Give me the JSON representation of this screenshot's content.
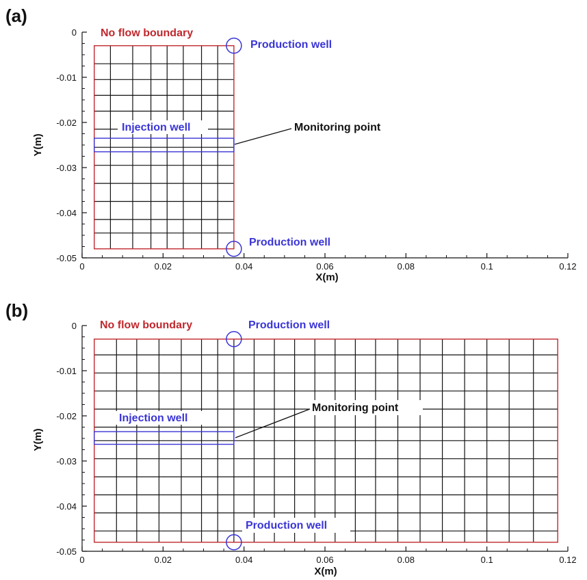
{
  "colors": {
    "boundary": "#c0282d",
    "well": "#3a35d6",
    "grid": "#111111",
    "axis": "#111111"
  },
  "panels": [
    {
      "id": "a",
      "label": "(a)",
      "x_axis": {
        "title": "X(m)",
        "ticks": [
          0,
          0.02,
          0.04,
          0.06,
          0.08,
          0.1,
          0.12
        ],
        "tick_labels": [
          "0",
          "0.02",
          "0.04",
          "0.06",
          "0.08",
          "0.1",
          "0.12"
        ]
      },
      "y_axis": {
        "title": "Y(m)",
        "ticks": [
          0,
          -0.01,
          -0.02,
          -0.03,
          -0.04,
          -0.05
        ],
        "tick_labels": [
          "0",
          "-0.01",
          "-0.02",
          "-0.03",
          "-0.04",
          "-0.05"
        ]
      },
      "domain": {
        "x": [
          0.003,
          0.0375
        ],
        "y": [
          -0.048,
          -0.003
        ]
      },
      "grid_x": [
        0.003,
        0.007,
        0.0125,
        0.017,
        0.021,
        0.025,
        0.0295,
        0.0335,
        0.0375
      ],
      "grid_y": [
        -0.003,
        -0.007,
        -0.0105,
        -0.014,
        -0.0175,
        -0.0215,
        -0.0255,
        -0.0295,
        -0.0335,
        -0.0375,
        -0.0415,
        -0.0445,
        -0.048
      ],
      "injection_well": {
        "x": [
          0.003,
          0.0375
        ],
        "y": [
          -0.0265,
          -0.0235
        ]
      },
      "production_wells": [
        {
          "x": 0.0375,
          "y": -0.003
        },
        {
          "x": 0.0375,
          "y": -0.048
        }
      ],
      "monitoring_point": {
        "x": 0.0375,
        "y": -0.0255
      },
      "labels": {
        "boundary": "No flow boundary",
        "injection": "Injection well",
        "monitoring": "Monitoring point",
        "production_top": "Production well",
        "production_bottom": "Production well"
      }
    },
    {
      "id": "b",
      "label": "(b)",
      "x_axis": {
        "title": "X(m)",
        "ticks": [
          0,
          0.02,
          0.04,
          0.06,
          0.08,
          0.1,
          0.12
        ],
        "tick_labels": [
          "0",
          "0.02",
          "0.04",
          "0.06",
          "0.08",
          "0.1",
          "0.12"
        ]
      },
      "y_axis": {
        "title": "Y(m)",
        "ticks": [
          0,
          -0.01,
          -0.02,
          -0.03,
          -0.04,
          -0.05
        ],
        "tick_labels": [
          "0",
          "-0.01",
          "-0.02",
          "-0.03",
          "-0.04",
          "-0.05"
        ]
      },
      "domain": {
        "x": [
          0.003,
          0.1175
        ],
        "y": [
          -0.048,
          -0.003
        ]
      },
      "grid_x": [
        0.003,
        0.0085,
        0.0135,
        0.019,
        0.0245,
        0.0295,
        0.0335,
        0.0375,
        0.0425,
        0.0475,
        0.0525,
        0.0575,
        0.0625,
        0.0675,
        0.0725,
        0.078,
        0.0835,
        0.089,
        0.0945,
        0.1,
        0.1055,
        0.1115,
        0.1175
      ],
      "grid_y": [
        -0.003,
        -0.0065,
        -0.0105,
        -0.0145,
        -0.0185,
        -0.0225,
        -0.0255,
        -0.0295,
        -0.0335,
        -0.0375,
        -0.0415,
        -0.0455,
        -0.048
      ],
      "injection_well": {
        "x": [
          0.003,
          0.0375
        ],
        "y": [
          -0.0263,
          -0.0235
        ]
      },
      "production_wells": [
        {
          "x": 0.0375,
          "y": -0.003
        },
        {
          "x": 0.0375,
          "y": -0.048
        }
      ],
      "monitoring_point": {
        "x": 0.0375,
        "y": -0.0255
      },
      "labels": {
        "boundary": "No flow boundary",
        "injection": "Injection well",
        "monitoring": "Monitoring point",
        "production_top": "Production well",
        "production_bottom": "Production well"
      }
    }
  ]
}
